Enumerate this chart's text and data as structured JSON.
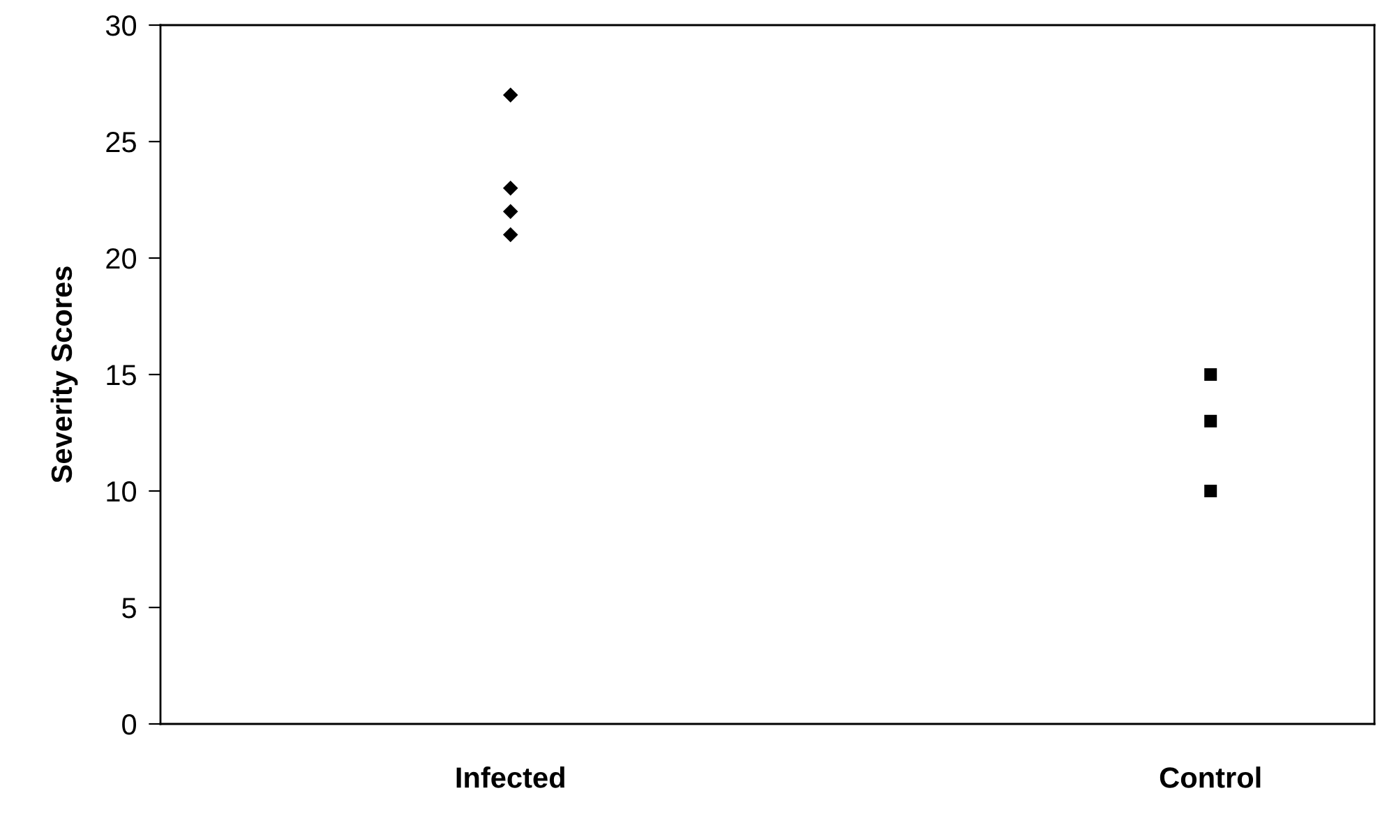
{
  "chart_data": {
    "type": "scatter",
    "ylabel": "Severity Scores",
    "categories": [
      "Infected",
      "Control"
    ],
    "series": [
      {
        "x": [
          "Infected",
          "Infected",
          "Infected",
          "Infected"
        ],
        "values": [
          27,
          23,
          22,
          21
        ],
        "color": "#000000",
        "marker": "diamond"
      },
      {
        "x": [
          "Control",
          "Control",
          "Control"
        ],
        "values": [
          15,
          13,
          10
        ],
        "color": "#000000",
        "marker": "square"
      }
    ],
    "ylim": [
      0,
      30
    ],
    "yticks": [
      0,
      5,
      10,
      15,
      20,
      25,
      30
    ],
    "grid": false,
    "legend": false
  }
}
